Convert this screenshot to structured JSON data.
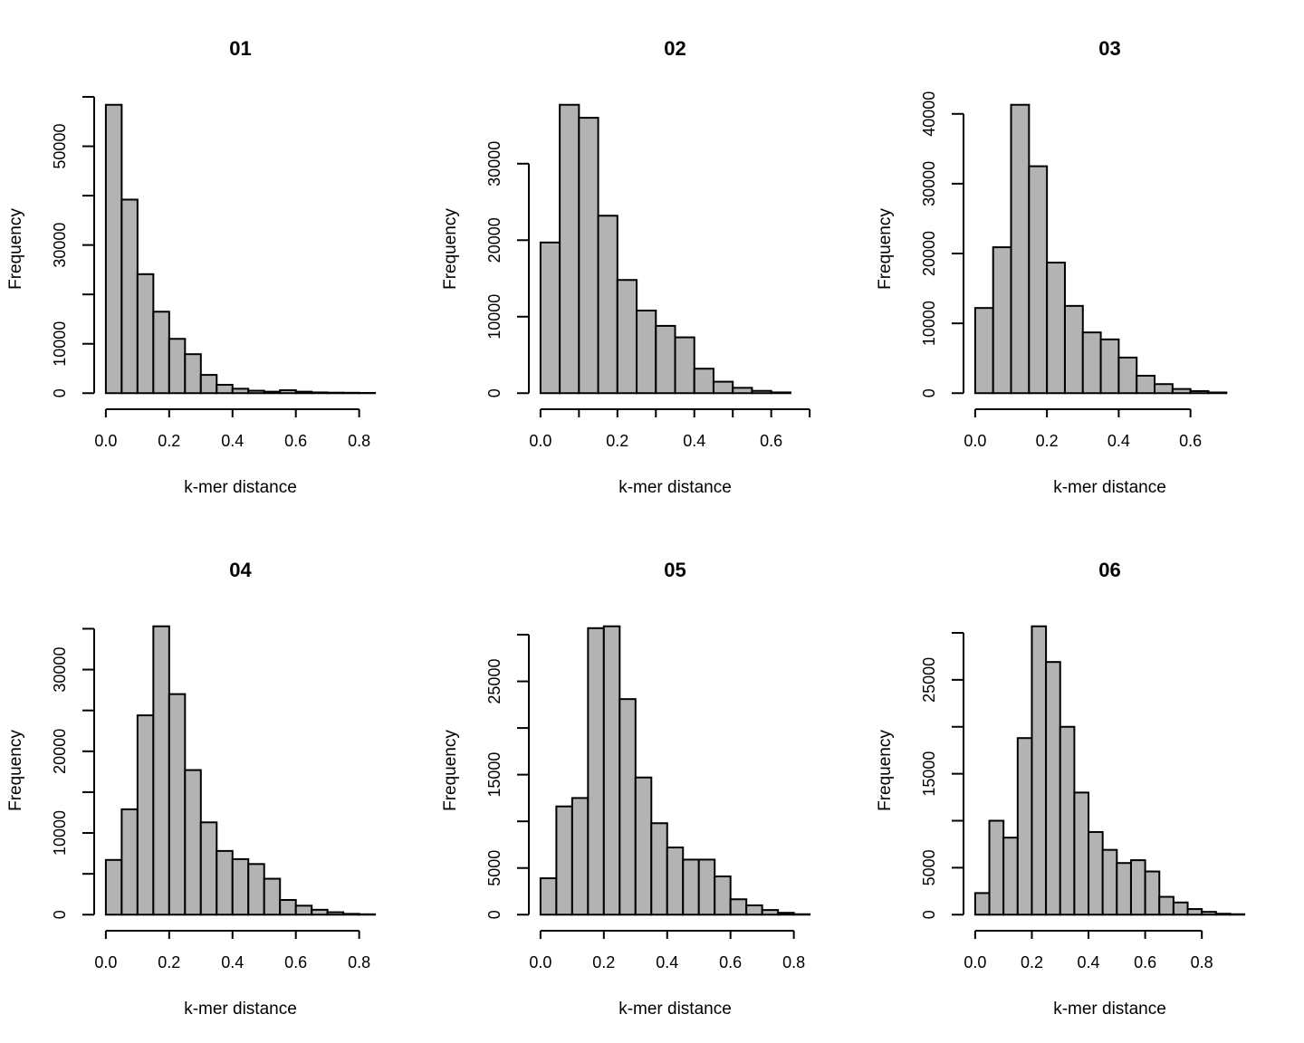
{
  "chart_data": [
    {
      "type": "bar",
      "title": "01",
      "xlabel": "k-mer distance",
      "ylabel": "Frequency",
      "bin_width": 0.05,
      "xlim": [
        0,
        0.85
      ],
      "bin_starts": [
        0,
        0.05,
        0.1,
        0.15,
        0.2,
        0.25,
        0.3,
        0.35,
        0.4,
        0.45,
        0.5,
        0.55,
        0.6,
        0.65,
        0.7,
        0.75,
        0.8
      ],
      "values": [
        58400,
        39200,
        24100,
        16500,
        11000,
        7900,
        3700,
        1700,
        900,
        500,
        300,
        600,
        300,
        150,
        100,
        80,
        50
      ],
      "x_ticks": [
        0,
        0.2,
        0.4,
        0.6,
        0.8
      ],
      "x_tick_labels": [
        "0.0",
        "0.2",
        "0.4",
        "0.6",
        "0.8"
      ],
      "y_ticks": [
        0,
        10000,
        20000,
        30000,
        40000,
        50000,
        60000
      ],
      "y_tick_labels": [
        "0",
        "10000",
        "",
        "30000",
        "",
        "50000",
        ""
      ]
    },
    {
      "type": "bar",
      "title": "02",
      "xlabel": "k-mer distance",
      "ylabel": "Frequency",
      "bin_width": 0.05,
      "xlim": [
        0,
        0.7
      ],
      "bin_starts": [
        0,
        0.05,
        0.1,
        0.15,
        0.2,
        0.25,
        0.3,
        0.35,
        0.4,
        0.45,
        0.5,
        0.55,
        0.6
      ],
      "values": [
        19700,
        37700,
        36000,
        23200,
        14800,
        10800,
        8800,
        7300,
        3200,
        1500,
        700,
        300,
        100
      ],
      "x_ticks": [
        0,
        0.1,
        0.2,
        0.3,
        0.4,
        0.5,
        0.6,
        0.7
      ],
      "x_tick_labels": [
        "0.0",
        "",
        "0.2",
        "",
        "0.4",
        "",
        "0.6",
        ""
      ],
      "y_ticks": [
        0,
        10000,
        20000,
        30000
      ],
      "y_tick_labels": [
        "0",
        "10000",
        "20000",
        "30000"
      ]
    },
    {
      "type": "bar",
      "title": "03",
      "xlabel": "k-mer distance",
      "ylabel": "Frequency",
      "bin_width": 0.05,
      "xlim": [
        0,
        0.75
      ],
      "bin_starts": [
        0,
        0.05,
        0.1,
        0.15,
        0.2,
        0.25,
        0.3,
        0.35,
        0.4,
        0.45,
        0.5,
        0.55,
        0.6,
        0.65
      ],
      "values": [
        12200,
        20900,
        41300,
        32500,
        18700,
        12500,
        8700,
        7700,
        5100,
        2500,
        1300,
        600,
        300,
        100
      ],
      "x_ticks": [
        0,
        0.2,
        0.4,
        0.6
      ],
      "x_tick_labels": [
        "0.0",
        "0.2",
        "0.4",
        "0.6"
      ],
      "y_ticks": [
        0,
        10000,
        20000,
        30000,
        40000
      ],
      "y_tick_labels": [
        "0",
        "10000",
        "20000",
        "30000",
        "40000"
      ]
    },
    {
      "type": "bar",
      "title": "04",
      "xlabel": "k-mer distance",
      "ylabel": "Frequency",
      "bin_width": 0.05,
      "xlim": [
        0,
        0.85
      ],
      "bin_starts": [
        0,
        0.05,
        0.1,
        0.15,
        0.2,
        0.25,
        0.3,
        0.35,
        0.4,
        0.45,
        0.5,
        0.55,
        0.6,
        0.65,
        0.7,
        0.75,
        0.8
      ],
      "values": [
        6700,
        12900,
        24400,
        35300,
        27000,
        17700,
        11300,
        7800,
        6800,
        6200,
        4400,
        1800,
        1100,
        600,
        300,
        100,
        50
      ],
      "x_ticks": [
        0,
        0.2,
        0.4,
        0.6,
        0.8
      ],
      "x_tick_labels": [
        "0.0",
        "0.2",
        "0.4",
        "0.6",
        "0.8"
      ],
      "y_ticks": [
        0,
        5000,
        10000,
        15000,
        20000,
        25000,
        30000,
        35000
      ],
      "y_tick_labels": [
        "0",
        "",
        "10000",
        "",
        "20000",
        "",
        "30000",
        ""
      ]
    },
    {
      "type": "bar",
      "title": "05",
      "xlabel": "k-mer distance",
      "ylabel": "Frequency",
      "bin_width": 0.05,
      "xlim": [
        0,
        0.85
      ],
      "bin_starts": [
        0,
        0.05,
        0.1,
        0.15,
        0.2,
        0.25,
        0.3,
        0.35,
        0.4,
        0.45,
        0.5,
        0.55,
        0.6,
        0.65,
        0.7,
        0.75,
        0.8
      ],
      "values": [
        3900,
        11600,
        12500,
        30700,
        30900,
        23100,
        14700,
        9800,
        7200,
        5900,
        5900,
        4100,
        1650,
        1000,
        500,
        200,
        50
      ],
      "x_ticks": [
        0,
        0.2,
        0.4,
        0.6,
        0.8
      ],
      "x_tick_labels": [
        "0.0",
        "0.2",
        "0.4",
        "0.6",
        "0.8"
      ],
      "y_ticks": [
        0,
        5000,
        10000,
        15000,
        20000,
        25000,
        30000
      ],
      "y_tick_labels": [
        "0",
        "5000",
        "",
        "15000",
        "",
        "25000",
        ""
      ]
    },
    {
      "type": "bar",
      "title": "06",
      "xlabel": "k-mer distance",
      "ylabel": "Frequency",
      "bin_width": 0.05,
      "xlim": [
        0,
        0.95
      ],
      "bin_starts": [
        0,
        0.05,
        0.1,
        0.15,
        0.2,
        0.25,
        0.3,
        0.35,
        0.4,
        0.45,
        0.5,
        0.55,
        0.6,
        0.65,
        0.7,
        0.75,
        0.8,
        0.85,
        0.9
      ],
      "values": [
        2300,
        10000,
        8200,
        18800,
        30700,
        26900,
        20000,
        13000,
        8800,
        6900,
        5500,
        5800,
        4600,
        1900,
        1300,
        600,
        300,
        100,
        50
      ],
      "x_ticks": [
        0,
        0.2,
        0.4,
        0.6,
        0.8
      ],
      "x_tick_labels": [
        "0.0",
        "0.2",
        "0.4",
        "0.6",
        "0.8"
      ],
      "y_ticks": [
        0,
        5000,
        10000,
        15000,
        20000,
        25000,
        30000
      ],
      "y_tick_labels": [
        "0",
        "5000",
        "",
        "15000",
        "",
        "25000",
        ""
      ]
    }
  ]
}
